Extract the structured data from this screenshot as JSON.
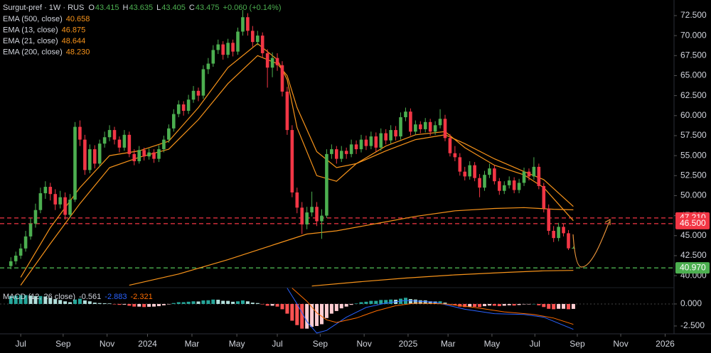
{
  "chart_data": {
    "type": "candlestick",
    "symbol": "Surgut-pref · 1W · RUS",
    "change": "+0.060 (+0.14%)",
    "ohlc_letters": [
      "O",
      "H",
      "L",
      "C"
    ],
    "up_color": "#4caf50",
    "down_color": "#f23645",
    "xlim": [
      -2.2,
      134.4
    ],
    "xticks": [
      {
        "value": 2,
        "label": "Jul"
      },
      {
        "value": 10.6,
        "label": "Sep"
      },
      {
        "value": 19.5,
        "label": "Nov"
      },
      {
        "value": 27.7,
        "label": "2024"
      },
      {
        "value": 36.7,
        "label": "Mar"
      },
      {
        "value": 45.8,
        "label": "May"
      },
      {
        "value": 54,
        "label": "Jul"
      },
      {
        "value": 62.7,
        "label": "Sep"
      },
      {
        "value": 71.6,
        "label": "Nov"
      },
      {
        "value": 80.5,
        "label": "2025"
      },
      {
        "value": 88.6,
        "label": "Mar"
      },
      {
        "value": 97.5,
        "label": "May"
      },
      {
        "value": 106.2,
        "label": "Jul"
      },
      {
        "value": 114.8,
        "label": "Sep"
      },
      {
        "value": 123.6,
        "label": "Nov"
      },
      {
        "value": 132.6,
        "label": "2026"
      }
    ],
    "ylim": [
      38.5,
      74.45
    ],
    "yticks": [
      {
        "value": 72.5,
        "label": "72.500"
      },
      {
        "value": 70,
        "label": "70.000"
      },
      {
        "value": 67.5,
        "label": "67.500"
      },
      {
        "value": 65,
        "label": "65.000"
      },
      {
        "value": 62.5,
        "label": "62.500"
      },
      {
        "value": 60,
        "label": "60.000"
      },
      {
        "value": 57.5,
        "label": "57.500"
      },
      {
        "value": 55,
        "label": "55.000"
      },
      {
        "value": 52.5,
        "label": "52.500"
      },
      {
        "value": 50,
        "label": "50.000"
      },
      {
        "value": 47.5,
        "label": "47.500"
      },
      {
        "value": 45,
        "label": "45.000"
      },
      {
        "value": 42.5,
        "label": "42.500"
      },
      {
        "value": 40,
        "label": "40.000"
      }
    ],
    "levels": [
      {
        "value": 47.21,
        "label": "47.210",
        "color": "#f23645"
      },
      {
        "value": 46.5,
        "label": "46.500",
        "color": "#f23645"
      },
      {
        "value": 40.97,
        "label": "40.970",
        "color": "#4caf50"
      }
    ],
    "ohlc": [
      [
        41.2,
        42.3,
        40.8,
        41.8
      ],
      [
        41.8,
        43.0,
        41.4,
        42.5
      ],
      [
        42.5,
        44.0,
        42.1,
        43.4
      ],
      [
        43.4,
        45.6,
        43.0,
        44.9
      ],
      [
        44.9,
        47.2,
        44.5,
        46.5
      ],
      [
        46.5,
        49.0,
        46.0,
        48.2
      ],
      [
        48.2,
        51.0,
        47.8,
        50.3
      ],
      [
        50.3,
        51.8,
        49.6,
        51.1
      ],
      [
        51.1,
        51.6,
        49.4,
        50.2
      ],
      [
        50.2,
        50.8,
        48.2,
        48.9
      ],
      [
        48.9,
        50.6,
        48.4,
        49.8
      ],
      [
        49.8,
        50.4,
        47.0,
        47.6
      ],
      [
        47.6,
        50.2,
        47.2,
        49.5
      ],
      [
        49.5,
        59.2,
        49.2,
        58.6
      ],
      [
        58.6,
        59.4,
        56.2,
        57.0
      ],
      [
        57.0,
        57.6,
        52.6,
        53.2
      ],
      [
        53.2,
        56.4,
        52.8,
        55.8
      ],
      [
        55.8,
        56.3,
        53.4,
        54.0
      ],
      [
        54.0,
        57.0,
        53.6,
        56.5
      ],
      [
        56.5,
        58.0,
        56.0,
        57.3
      ],
      [
        57.3,
        58.8,
        56.8,
        58.2
      ],
      [
        58.2,
        58.6,
        56.4,
        57.0
      ],
      [
        57.0,
        57.4,
        55.4,
        56.0
      ],
      [
        56.0,
        58.2,
        55.6,
        57.6
      ],
      [
        57.6,
        58.0,
        54.8,
        55.2
      ],
      [
        55.2,
        55.8,
        53.8,
        54.3
      ],
      [
        54.3,
        56.2,
        54.0,
        55.7
      ],
      [
        55.7,
        56.0,
        54.4,
        54.9
      ],
      [
        54.9,
        55.9,
        54.5,
        55.4
      ],
      [
        55.4,
        55.8,
        54.1,
        54.6
      ],
      [
        54.6,
        56.3,
        54.2,
        55.8
      ],
      [
        55.8,
        57.5,
        55.4,
        57.0
      ],
      [
        57.0,
        58.9,
        56.6,
        58.4
      ],
      [
        58.4,
        60.8,
        58.0,
        60.2
      ],
      [
        60.2,
        61.9,
        59.8,
        61.4
      ],
      [
        61.4,
        61.8,
        60.0,
        60.6
      ],
      [
        60.6,
        62.6,
        60.2,
        62.0
      ],
      [
        62.0,
        63.7,
        61.6,
        63.1
      ],
      [
        63.1,
        63.5,
        61.8,
        62.5
      ],
      [
        62.5,
        66.3,
        62.1,
        65.8
      ],
      [
        65.8,
        67.2,
        65.2,
        66.5
      ],
      [
        66.5,
        68.8,
        66.1,
        68.2
      ],
      [
        68.2,
        69.5,
        67.7,
        68.9
      ],
      [
        68.9,
        69.3,
        67.0,
        67.6
      ],
      [
        67.6,
        69.6,
        67.2,
        69.1
      ],
      [
        69.1,
        69.5,
        67.4,
        68.0
      ],
      [
        68.0,
        71.0,
        67.6,
        70.5
      ],
      [
        70.5,
        73.2,
        70.0,
        72.3
      ],
      [
        72.3,
        72.8,
        70.0,
        70.6
      ],
      [
        70.6,
        71.2,
        68.6,
        69.2
      ],
      [
        69.2,
        70.6,
        68.8,
        70.0
      ],
      [
        70.0,
        70.4,
        67.2,
        67.8
      ],
      [
        67.8,
        68.3,
        63.5,
        66.0
      ],
      [
        66.0,
        67.9,
        64.8,
        67.2
      ],
      [
        67.2,
        67.8,
        65.6,
        66.3
      ],
      [
        66.3,
        66.8,
        62.4,
        63.0
      ],
      [
        63.0,
        63.6,
        57.6,
        58.2
      ],
      [
        58.2,
        58.8,
        49.8,
        50.4
      ],
      [
        50.4,
        51.0,
        47.8,
        48.5
      ],
      [
        48.5,
        49.2,
        45.2,
        46.4
      ],
      [
        46.4,
        48.6,
        45.8,
        47.9
      ],
      [
        47.9,
        50.5,
        47.4,
        48.6
      ],
      [
        48.6,
        49.2,
        46.2,
        46.8
      ],
      [
        46.8,
        48.3,
        44.6,
        47.5
      ],
      [
        47.5,
        55.8,
        47.2,
        55.2
      ],
      [
        55.2,
        56.4,
        54.6,
        55.8
      ],
      [
        55.8,
        56.2,
        54.0,
        54.6
      ],
      [
        54.6,
        56.2,
        54.2,
        55.6
      ],
      [
        55.6,
        56.0,
        54.6,
        55.2
      ],
      [
        55.2,
        57.0,
        54.8,
        56.4
      ],
      [
        56.4,
        56.9,
        55.2,
        55.8
      ],
      [
        55.8,
        57.6,
        55.4,
        57.0
      ],
      [
        57.0,
        57.5,
        55.7,
        56.2
      ],
      [
        56.2,
        58.0,
        55.8,
        57.4
      ],
      [
        57.4,
        57.9,
        55.5,
        56.0
      ],
      [
        56.0,
        58.4,
        55.6,
        57.8
      ],
      [
        57.8,
        58.3,
        56.4,
        56.9
      ],
      [
        56.9,
        58.8,
        56.5,
        58.2
      ],
      [
        58.2,
        58.7,
        56.9,
        57.4
      ],
      [
        57.4,
        60.4,
        57.0,
        59.8
      ],
      [
        59.8,
        61.0,
        59.3,
        60.5
      ],
      [
        60.5,
        60.9,
        57.5,
        58.0
      ],
      [
        58.0,
        59.4,
        57.6,
        58.9
      ],
      [
        58.9,
        59.3,
        57.8,
        58.3
      ],
      [
        58.3,
        59.7,
        57.9,
        59.2
      ],
      [
        59.2,
        59.6,
        57.5,
        58.0
      ],
      [
        58.0,
        59.3,
        57.6,
        58.8
      ],
      [
        58.8,
        60.8,
        58.4,
        59.6
      ],
      [
        59.6,
        60.1,
        56.8,
        57.2
      ],
      [
        57.2,
        57.7,
        54.9,
        55.3
      ],
      [
        55.3,
        56.2,
        54.3,
        54.8
      ],
      [
        54.8,
        55.3,
        52.5,
        53.0
      ],
      [
        53.0,
        53.6,
        51.9,
        52.4
      ],
      [
        52.4,
        54.3,
        52.0,
        53.8
      ],
      [
        53.8,
        54.2,
        51.8,
        52.2
      ],
      [
        52.2,
        52.7,
        49.8,
        51.0
      ],
      [
        51.0,
        53.1,
        50.6,
        52.6
      ],
      [
        52.6,
        54.0,
        52.2,
        53.4
      ],
      [
        53.4,
        53.8,
        51.4,
        51.8
      ],
      [
        51.8,
        52.2,
        50.1,
        50.6
      ],
      [
        50.6,
        51.8,
        50.2,
        51.3
      ],
      [
        51.3,
        52.4,
        50.9,
        51.9
      ],
      [
        51.9,
        52.3,
        50.3,
        50.7
      ],
      [
        50.7,
        52.1,
        50.3,
        51.6
      ],
      [
        51.6,
        53.5,
        51.2,
        53.0
      ],
      [
        53.0,
        53.4,
        51.9,
        52.4
      ],
      [
        52.4,
        54.8,
        52.0,
        53.6
      ],
      [
        53.6,
        54.0,
        50.8,
        51.2
      ],
      [
        51.2,
        51.6,
        47.9,
        48.4
      ],
      [
        48.4,
        48.9,
        45.1,
        45.6
      ],
      [
        45.6,
        46.2,
        44.2,
        44.7
      ],
      [
        44.7,
        46.6,
        44.3,
        46.1
      ],
      [
        46.1,
        46.5,
        44.9,
        45.3
      ],
      [
        45.3,
        45.7,
        43.2,
        43.415
      ],
      [
        43.415,
        43.635,
        43.405,
        43.475
      ]
    ],
    "series": [
      {
        "name": "EMA (500, close)",
        "color": "#f7931a",
        "x": [
          61,
          70,
          80,
          90,
          100,
          108,
          114
        ],
        "values": [
          38.7,
          39.2,
          39.7,
          40.1,
          40.4,
          40.6,
          40.658
        ]
      },
      {
        "name": "EMA (13, close)",
        "color": "#f7931a",
        "x": [
          2,
          8,
          14,
          20,
          26,
          32,
          38,
          44,
          50,
          54,
          56,
          58,
          62,
          66,
          70,
          76,
          82,
          88,
          92,
          98,
          104,
          108,
          114
        ],
        "values": [
          39.8,
          46.0,
          51.0,
          55.0,
          55.6,
          56.8,
          61.0,
          66.0,
          69.0,
          67.0,
          64.5,
          58.5,
          52.5,
          51.8,
          54.0,
          56.2,
          57.6,
          58.0,
          56.0,
          53.8,
          52.6,
          51.0,
          46.875
        ]
      },
      {
        "name": "EMA (21, close)",
        "color": "#f7931a",
        "x": [
          2,
          8,
          14,
          20,
          26,
          32,
          38,
          44,
          50,
          54,
          56,
          58,
          62,
          66,
          70,
          76,
          82,
          88,
          92,
          98,
          104,
          108,
          114
        ],
        "values": [
          38.8,
          44.0,
          49.0,
          53.5,
          54.8,
          55.8,
          59.5,
          64.0,
          67.5,
          66.5,
          65.0,
          61.0,
          55.5,
          53.5,
          54.0,
          55.6,
          57.0,
          57.6,
          56.5,
          54.6,
          53.0,
          52.0,
          48.644
        ]
      },
      {
        "name": "EMA (200, close)",
        "color": "#f7931a",
        "last_label": "48.230",
        "x": [
          24,
          34,
          44,
          54,
          60,
          66,
          74,
          82,
          90,
          98,
          104,
          110,
          114
        ],
        "values": [
          38.8,
          40.2,
          42.0,
          44.0,
          45.2,
          45.6,
          46.5,
          47.4,
          48.1,
          48.4,
          48.5,
          48.3,
          48.23
        ]
      }
    ],
    "macd": {
      "type": "macd",
      "name": "MACD (12, 26 close)",
      "ylim": [
        -3.39,
        1.85
      ],
      "yticks": [
        {
          "value": 0,
          "label": "0.000"
        },
        {
          "value": -2.5,
          "label": "-2.500"
        }
      ],
      "histogram_colors": [
        "#26a69a",
        "#b2dfdb",
        "#ff5252",
        "#ffcdd2"
      ],
      "histogram": [
        0.9,
        0.95,
        1.0,
        1.0,
        0.95,
        0.9,
        0.9,
        0.85,
        0.7,
        0.55,
        0.45,
        0.3,
        0.2,
        0.5,
        0.6,
        0.4,
        0.3,
        0.15,
        0.1,
        0.08,
        0.06,
        -0.05,
        -0.1,
        -0.08,
        -0.2,
        -0.3,
        -0.3,
        -0.35,
        -0.32,
        -0.3,
        -0.25,
        -0.15,
        -0.05,
        0.1,
        0.2,
        0.2,
        0.25,
        0.3,
        0.28,
        0.4,
        0.42,
        0.5,
        0.48,
        0.36,
        0.35,
        0.25,
        0.3,
        0.4,
        0.3,
        0.15,
        0.1,
        -0.05,
        -0.2,
        -0.2,
        -0.3,
        -0.6,
        -1.1,
        -1.9,
        -2.4,
        -2.8,
        -2.8,
        -2.6,
        -2.5,
        -2.3,
        -1.6,
        -1.1,
        -0.8,
        -0.5,
        -0.3,
        -0.1,
        0.05,
        0.2,
        0.25,
        0.35,
        0.35,
        0.45,
        0.45,
        0.5,
        0.48,
        0.6,
        0.7,
        0.55,
        0.5,
        0.42,
        0.4,
        0.3,
        0.28,
        0.3,
        0.15,
        -0.05,
        -0.15,
        -0.3,
        -0.35,
        -0.3,
        -0.32,
        -0.35,
        -0.25,
        -0.18,
        -0.2,
        -0.25,
        -0.2,
        -0.15,
        -0.18,
        -0.12,
        -0.05,
        -0.05,
        0.0,
        -0.15,
        -0.35,
        -0.55,
        -0.6,
        -0.55,
        -0.55,
        -0.6,
        -0.561
      ],
      "lines": [
        {
          "name": "MACD",
          "color": "#2962ff",
          "x": [
            56,
            58,
            60,
            62,
            64,
            68,
            72,
            76,
            80,
            86,
            92,
            98,
            104,
            108,
            114
          ],
          "values": [
            1.8,
            0.0,
            -2.0,
            -3.3,
            -3.0,
            -1.5,
            -0.4,
            0.1,
            0.4,
            0.2,
            -0.6,
            -1.1,
            -1.2,
            -1.5,
            -2.883
          ]
        },
        {
          "name": "Signal",
          "color": "#ff6d00",
          "x": [
            57,
            60,
            62,
            64,
            66,
            70,
            74,
            78,
            82,
            88,
            94,
            100,
            106,
            110,
            114
          ],
          "values": [
            1.8,
            0.3,
            -1.0,
            -1.8,
            -2.1,
            -1.6,
            -0.8,
            -0.2,
            0.1,
            0.0,
            -0.4,
            -0.9,
            -1.2,
            -1.6,
            -2.321
          ]
        }
      ]
    }
  }
}
